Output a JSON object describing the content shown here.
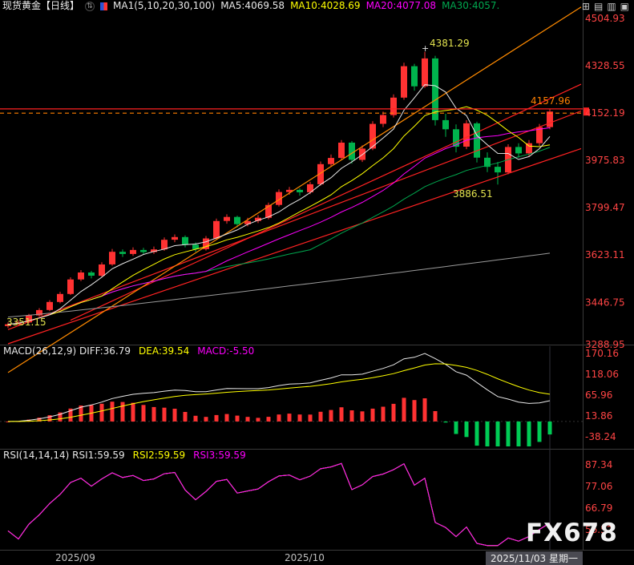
{
  "header": {
    "title": "现货黄金【日线】",
    "symbol_switch_glyph": "⇅",
    "ma_group": "MA1(5,10,20,30,100)",
    "ma5": "MA5:4069.58",
    "ma10": "MA10:4028.69",
    "ma20": "MA20:4077.08",
    "ma30": "MA30:4057.",
    "toolbar_icons": [
      {
        "name": "multi-chart-layout",
        "glyph": "⊞"
      },
      {
        "name": "candlestick-view",
        "glyph": "▤"
      },
      {
        "name": "split-panel-view",
        "glyph": "▥"
      },
      {
        "name": "fullscreen-view",
        "glyph": "▣"
      }
    ]
  },
  "colors": {
    "background": "#000000",
    "up": "#ff3232",
    "down": "#00b34d",
    "macd_pos": "#ff3232",
    "macd_neg": "#00cc55",
    "axis_text": "#ff4444",
    "ma5": "#e8e8e8",
    "ma10": "#ffff00",
    "ma20": "#ff00ff",
    "ma30": "#00a84f",
    "ma100": "#9a9a9a",
    "diff_line": "#e8e8e8",
    "dea_line": "#ffff00",
    "rsi1": "#e8e8e8",
    "rsi2": "#ffff00",
    "rsi3": "#ff00ff",
    "trend_red": "#ff2222",
    "trend_orange": "#ff8a00",
    "annotation_yellow": "#e2e24e",
    "last_price": "#ff8000",
    "separator": "#3a3a3a",
    "x_label": "#c0c0c0",
    "x_label_highlight_bg": "#4a4a52"
  },
  "price_axis": [
    "4504.93",
    "4328.55",
    "4152.19",
    "3975.83",
    "3799.47",
    "3623.11",
    "3446.75",
    "3288.95"
  ],
  "macd_panel": {
    "label1": "MACD(26,12,9) DIFF:36.79",
    "label2": "DEA:39.54",
    "label3": "MACD:-5.50",
    "axis": [
      "170.16",
      "118.06",
      "65.96",
      "13.86",
      "-38.24"
    ]
  },
  "rsi_panel": {
    "label1": "RSI(14,14,14) RSI1:59.59",
    "label2": "RSI2:59.59",
    "label3": "RSI3:59.59",
    "axis": [
      "87.34",
      "77.06",
      "66.79",
      "56.52"
    ]
  },
  "x_axis": {
    "labels": [
      {
        "text": "2025/09",
        "index": 5,
        "highlight": false
      },
      {
        "text": "2025/10",
        "index": 27,
        "highlight": false
      },
      {
        "text": "2025/11/03 星期一",
        "index": 52,
        "highlight": true
      }
    ]
  },
  "annotations": {
    "peak": {
      "text": "4381.29",
      "marker": "+",
      "index": 40,
      "price": 4381.29
    },
    "pullback": {
      "text": "3886.51",
      "index": 47,
      "price": 3886.51
    },
    "start": {
      "text": "3351.15",
      "index": 0,
      "price": 3351.15
    },
    "last": {
      "text": "4157.96",
      "price": 4157.96
    }
  },
  "watermark": "FX678",
  "chart_data": {
    "type": "candlestick",
    "title": "现货黄金 日线 (Spot Gold, Daily)",
    "ylim": [
      3288.95,
      4504.93
    ],
    "x_range": [
      "2025/08/26",
      "2025/11/03"
    ],
    "candles": {
      "o": [
        3358,
        3365,
        3372,
        3398,
        3418,
        3448,
        3478,
        3532,
        3558,
        3546,
        3588,
        3635,
        3627,
        3642,
        3634,
        3644,
        3680,
        3690,
        3662,
        3645,
        3685,
        3750,
        3765,
        3738,
        3750,
        3762,
        3810,
        3858,
        3866,
        3857,
        3887,
        3962,
        3985,
        4042,
        3978,
        4020,
        4112,
        4145,
        4210,
        4327,
        4252,
        4356,
        4126,
        4092,
        4027,
        4114,
        3986,
        3952,
        3931,
        4026,
        4002,
        4040,
        4100
      ],
      "h": [
        3372,
        3380,
        3404,
        3425,
        3455,
        3486,
        3540,
        3567,
        3564,
        3596,
        3646,
        3644,
        3652,
        3650,
        3655,
        3689,
        3700,
        3696,
        3670,
        3694,
        3759,
        3775,
        3770,
        3762,
        3772,
        3819,
        3868,
        3877,
        3872,
        3896,
        3972,
        3998,
        4052,
        4048,
        4032,
        4122,
        4158,
        4222,
        4340,
        4336,
        4381,
        4366,
        4150,
        4110,
        4126,
        4120,
        4006,
        3970,
        4036,
        4040,
        4052,
        4112,
        4168
      ],
      "l": [
        3351,
        3358,
        3368,
        3393,
        3414,
        3443,
        3474,
        3526,
        3536,
        3541,
        3583,
        3616,
        3620,
        3624,
        3627,
        3639,
        3671,
        3652,
        3635,
        3640,
        3681,
        3740,
        3726,
        3730,
        3742,
        3756,
        3804,
        3848,
        3844,
        3850,
        3882,
        3952,
        3978,
        3964,
        3970,
        4014,
        4100,
        4136,
        4202,
        4236,
        4246,
        4106,
        4064,
        4006,
        4018,
        3968,
        3932,
        3886,
        3924,
        3986,
        3992,
        4030,
        4092
      ],
      "c": [
        3365,
        3372,
        3398,
        3418,
        3448,
        3478,
        3532,
        3558,
        3546,
        3588,
        3635,
        3627,
        3642,
        3634,
        3644,
        3680,
        3690,
        3662,
        3645,
        3685,
        3750,
        3765,
        3738,
        3750,
        3762,
        3810,
        3858,
        3866,
        3857,
        3887,
        3962,
        3985,
        4042,
        3978,
        4020,
        4112,
        4145,
        4210,
        4327,
        4252,
        4356,
        4126,
        4092,
        4027,
        4114,
        3986,
        3952,
        3931,
        4026,
        4002,
        4040,
        4100,
        4158
      ]
    },
    "ma100": {
      "start": 3392,
      "end": 3630
    },
    "overlays": {
      "horizontal_lines": [
        {
          "price": 4168,
          "color_key": "trend_red",
          "dash": false
        },
        {
          "price": 4152,
          "color_key": "last_price",
          "dash": true
        }
      ],
      "trend_lines": [
        {
          "i1": 0,
          "p1": 3345,
          "i2": 55,
          "p2": 4160,
          "color_key": "trend_red"
        },
        {
          "i1": 0,
          "p1": 3292,
          "i2": 55,
          "p2": 4020,
          "color_key": "trend_red"
        },
        {
          "i1": 6,
          "p1": 3380,
          "i2": 55,
          "p2": 4260,
          "color_key": "trend_red"
        },
        {
          "i1": 0,
          "p1": 3185,
          "i2": 55,
          "p2": 4548,
          "color_key": "trend_orange"
        }
      ]
    },
    "indicators": {
      "macd": {
        "fast": 12,
        "slow": 26,
        "signal": 9,
        "diff": 36.79,
        "dea": 39.54,
        "macd": -5.5
      },
      "rsi": {
        "periods": [
          14,
          14,
          14
        ],
        "values": [
          59.59,
          59.59,
          59.59
        ]
      }
    }
  }
}
